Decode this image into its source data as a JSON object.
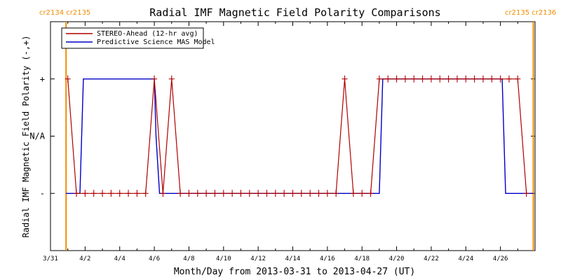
{
  "chart_data": {
    "type": "line",
    "title": "Radial IMF Magnetic Field Polarity Comparisons",
    "xlabel": "Month/Day from 2013-03-31 to 2013-04-27 (UT)",
    "ylabel": "Radial IMF Magnetic Field Polarity (-,+)",
    "xlim": [
      0.0,
      28.0
    ],
    "ylim": [
      -2.0,
      2.0
    ],
    "x_tick_values": [
      0,
      2,
      4,
      6,
      8,
      10,
      12,
      14,
      16,
      18,
      20,
      22,
      24,
      26
    ],
    "x_tick_labels": [
      "3/31",
      "4/2",
      "4/4",
      "4/6",
      "4/8",
      "4/10",
      "4/12",
      "4/14",
      "4/16",
      "4/18",
      "4/20",
      "4/22",
      "4/24",
      "4/26"
    ],
    "y_tick_values": [
      -1,
      0,
      1
    ],
    "y_tick_labels": [
      "-",
      "N/A",
      "+"
    ],
    "legend_placement": "top-left",
    "carrington": {
      "left_labels": "cr2134 cr2135",
      "right_labels": "cr2135 cr2136",
      "left_line_x": 0.9,
      "right_line_x": 27.9,
      "color": "#f08c00"
    },
    "series": [
      {
        "name": "STEREO-Ahead (12-hr avg)",
        "color": "#b00000",
        "markers": "plus",
        "x": [
          1.0,
          1.5,
          2.0,
          2.5,
          3.0,
          3.5,
          4.0,
          4.5,
          5.0,
          5.5,
          6.0,
          6.5,
          7.0,
          7.5,
          8.0,
          8.5,
          9.0,
          9.5,
          10.0,
          10.5,
          11.0,
          11.5,
          12.0,
          12.5,
          13.0,
          13.5,
          14.0,
          14.5,
          15.0,
          15.5,
          16.0,
          16.5,
          17.0,
          17.5,
          18.0,
          18.5,
          19.0,
          19.5,
          20.0,
          20.5,
          21.0,
          21.5,
          22.0,
          22.5,
          23.0,
          23.5,
          24.0,
          24.5,
          25.0,
          25.5,
          26.0,
          26.5,
          27.0,
          27.5
        ],
        "y": [
          1,
          -1,
          -1,
          -1,
          -1,
          -1,
          -1,
          -1,
          -1,
          -1,
          1,
          -1,
          1,
          -1,
          -1,
          -1,
          -1,
          -1,
          -1,
          -1,
          -1,
          -1,
          -1,
          -1,
          -1,
          -1,
          -1,
          -1,
          -1,
          -1,
          -1,
          -1,
          1,
          -1,
          -1,
          -1,
          1,
          1,
          1,
          1,
          1,
          1,
          1,
          1,
          1,
          1,
          1,
          1,
          1,
          1,
          1,
          1,
          1,
          -1
        ]
      },
      {
        "name": "Predictive Science MAS Model",
        "color": "#0000c8",
        "markers": "none",
        "x": [
          0.9,
          1.7,
          1.9,
          6.0,
          6.1,
          6.3,
          19.0,
          19.2,
          26.1,
          26.3,
          27.9
        ],
        "y": [
          -1,
          -1,
          1,
          1,
          0,
          -1,
          -1,
          1,
          1,
          -1,
          -1
        ]
      }
    ]
  }
}
